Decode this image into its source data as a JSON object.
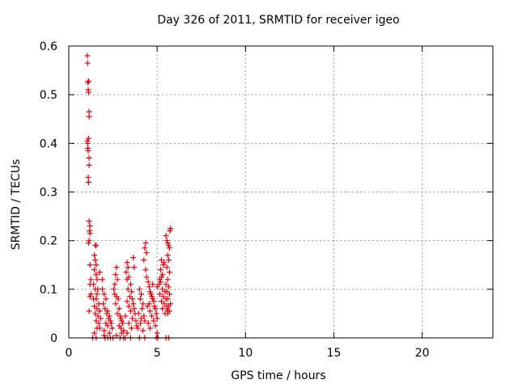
{
  "chart_data": {
    "type": "scatter",
    "title": "Day 326 of 2011, SRMTID for receiver igeo",
    "xlabel": "GPS time / hours",
    "ylabel": "SRMTID / TECUs",
    "xlim": [
      0,
      24
    ],
    "ylim": [
      0,
      0.6
    ],
    "xticks": [
      0,
      5,
      10,
      15,
      20
    ],
    "xtick_labels": [
      "0",
      "5",
      "10",
      "15",
      "20"
    ],
    "yticks": [
      0,
      0.1,
      0.2,
      0.3,
      0.4,
      0.5,
      0.6
    ],
    "ytick_labels": [
      "0",
      "0.1",
      "0.2",
      "0.3",
      "0.4",
      "0.5",
      "0.6"
    ],
    "grid": true,
    "marker": "+",
    "color": "#e8000b",
    "series": [
      {
        "name": "SRMTID",
        "points": [
          [
            1.05,
            0.58
          ],
          [
            1.07,
            0.565
          ],
          [
            1.08,
            0.525
          ],
          [
            1.12,
            0.528
          ],
          [
            1.1,
            0.51
          ],
          [
            1.12,
            0.505
          ],
          [
            1.15,
            0.465
          ],
          [
            1.15,
            0.455
          ],
          [
            1.12,
            0.41
          ],
          [
            1.05,
            0.405
          ],
          [
            1.07,
            0.4
          ],
          [
            1.08,
            0.39
          ],
          [
            1.1,
            0.385
          ],
          [
            1.15,
            0.37
          ],
          [
            1.15,
            0.355
          ],
          [
            1.1,
            0.33
          ],
          [
            1.12,
            0.32
          ],
          [
            1.15,
            0.24
          ],
          [
            1.2,
            0.23
          ],
          [
            1.18,
            0.22
          ],
          [
            1.2,
            0.215
          ],
          [
            1.15,
            0.2
          ],
          [
            1.12,
            0.195
          ],
          [
            1.2,
            0.15
          ],
          [
            1.25,
            0.12
          ],
          [
            1.2,
            0.11
          ],
          [
            1.25,
            0.09
          ],
          [
            1.2,
            0.085
          ],
          [
            1.15,
            0.055
          ],
          [
            1.5,
            0.19
          ],
          [
            1.55,
            0.19
          ],
          [
            1.45,
            0.17
          ],
          [
            1.5,
            0.16
          ],
          [
            1.55,
            0.15
          ],
          [
            1.45,
            0.14
          ],
          [
            1.55,
            0.13
          ],
          [
            1.6,
            0.12
          ],
          [
            1.4,
            0.11
          ],
          [
            1.5,
            0.1
          ],
          [
            1.65,
            0.1
          ],
          [
            1.6,
            0.09
          ],
          [
            1.4,
            0.08
          ],
          [
            1.55,
            0.08
          ],
          [
            1.7,
            0.07
          ],
          [
            1.45,
            0.065
          ],
          [
            1.6,
            0.06
          ],
          [
            1.75,
            0.055
          ],
          [
            1.5,
            0.05
          ],
          [
            1.65,
            0.045
          ],
          [
            1.8,
            0.04
          ],
          [
            1.55,
            0.035
          ],
          [
            1.7,
            0.03
          ],
          [
            1.6,
            0.02
          ],
          [
            1.75,
            0.02
          ],
          [
            1.45,
            0.01
          ],
          [
            1.35,
            0.0
          ],
          [
            1.55,
            0.0
          ],
          [
            1.75,
            0.135
          ],
          [
            1.9,
            0.1
          ],
          [
            2.0,
            0.09
          ],
          [
            2.1,
            0.08
          ],
          [
            1.95,
            0.07
          ],
          [
            2.05,
            0.06
          ],
          [
            2.2,
            0.055
          ],
          [
            2.15,
            0.05
          ],
          [
            2.3,
            0.045
          ],
          [
            2.25,
            0.04
          ],
          [
            2.35,
            0.035
          ],
          [
            2.1,
            0.03
          ],
          [
            2.4,
            0.03
          ],
          [
            2.2,
            0.025
          ],
          [
            2.45,
            0.02
          ],
          [
            2.0,
            0.015
          ],
          [
            2.3,
            0.01
          ],
          [
            2.05,
            0.0
          ],
          [
            2.2,
            0.0
          ],
          [
            2.35,
            0.0
          ],
          [
            1.9,
            0.12
          ],
          [
            2.0,
            0.005
          ],
          [
            2.55,
            0.1
          ],
          [
            2.6,
            0.11
          ],
          [
            2.7,
            0.145
          ],
          [
            2.65,
            0.13
          ],
          [
            2.75,
            0.12
          ],
          [
            2.6,
            0.09
          ],
          [
            2.7,
            0.085
          ],
          [
            2.8,
            0.08
          ],
          [
            2.65,
            0.07
          ],
          [
            2.85,
            0.06
          ],
          [
            2.75,
            0.05
          ],
          [
            2.9,
            0.045
          ],
          [
            2.95,
            0.04
          ],
          [
            3.0,
            0.035
          ],
          [
            3.05,
            0.03
          ],
          [
            2.85,
            0.025
          ],
          [
            2.95,
            0.02
          ],
          [
            3.1,
            0.015
          ],
          [
            3.0,
            0.01
          ],
          [
            2.7,
            0.005
          ],
          [
            2.9,
            0.0
          ],
          [
            3.1,
            0.0
          ],
          [
            2.5,
            0.0
          ],
          [
            3.3,
            0.155
          ],
          [
            3.35,
            0.145
          ],
          [
            3.25,
            0.135
          ],
          [
            3.4,
            0.125
          ],
          [
            3.3,
            0.12
          ],
          [
            3.5,
            0.11
          ],
          [
            3.35,
            0.1
          ],
          [
            3.55,
            0.095
          ],
          [
            3.45,
            0.085
          ],
          [
            3.6,
            0.08
          ],
          [
            3.3,
            0.075
          ],
          [
            3.65,
            0.07
          ],
          [
            3.4,
            0.065
          ],
          [
            3.7,
            0.06
          ],
          [
            3.5,
            0.055
          ],
          [
            3.75,
            0.05
          ],
          [
            3.2,
            0.045
          ],
          [
            3.6,
            0.04
          ],
          [
            3.8,
            0.035
          ],
          [
            3.4,
            0.03
          ],
          [
            3.85,
            0.025
          ],
          [
            3.55,
            0.02
          ],
          [
            3.3,
            0.01
          ],
          [
            3.2,
            0.0
          ],
          [
            3.5,
            0.0
          ],
          [
            3.65,
            0.165
          ],
          [
            3.7,
            0.145
          ],
          [
            4.0,
            0.1
          ],
          [
            4.1,
            0.09
          ],
          [
            4.05,
            0.08
          ],
          [
            4.2,
            0.07
          ],
          [
            4.15,
            0.06
          ],
          [
            3.95,
            0.05
          ],
          [
            4.25,
            0.045
          ],
          [
            4.1,
            0.04
          ],
          [
            4.3,
            0.035
          ],
          [
            4.05,
            0.03
          ],
          [
            3.9,
            0.02
          ],
          [
            4.2,
            0.015
          ],
          [
            4.0,
            0.0
          ],
          [
            4.3,
            0.0
          ],
          [
            4.35,
            0.195
          ],
          [
            4.3,
            0.185
          ],
          [
            4.4,
            0.175
          ],
          [
            4.25,
            0.16
          ],
          [
            4.35,
            0.14
          ],
          [
            4.4,
            0.125
          ],
          [
            4.5,
            0.115
          ],
          [
            4.55,
            0.105
          ],
          [
            4.6,
            0.095
          ],
          [
            4.65,
            0.09
          ],
          [
            4.7,
            0.085
          ],
          [
            4.75,
            0.08
          ],
          [
            4.8,
            0.075
          ],
          [
            4.55,
            0.07
          ],
          [
            4.85,
            0.065
          ],
          [
            4.9,
            0.06
          ],
          [
            4.6,
            0.055
          ],
          [
            4.95,
            0.05
          ],
          [
            4.7,
            0.045
          ],
          [
            5.0,
            0.04
          ],
          [
            4.8,
            0.035
          ],
          [
            4.5,
            0.03
          ],
          [
            4.9,
            0.025
          ],
          [
            4.6,
            0.02
          ],
          [
            5.0,
            0.01
          ],
          [
            4.95,
            0.0
          ],
          [
            5.05,
            0.0
          ],
          [
            4.45,
            0.065
          ],
          [
            4.75,
            0.11
          ],
          [
            5.0,
            0.105
          ],
          [
            5.1,
            0.11
          ],
          [
            5.2,
            0.115
          ],
          [
            5.15,
            0.12
          ],
          [
            5.25,
            0.125
          ],
          [
            5.3,
            0.13
          ],
          [
            5.2,
            0.14
          ],
          [
            5.35,
            0.15
          ],
          [
            5.25,
            0.16
          ],
          [
            5.4,
            0.155
          ],
          [
            5.3,
            0.1
          ],
          [
            5.45,
            0.095
          ],
          [
            5.15,
            0.09
          ],
          [
            5.35,
            0.085
          ],
          [
            5.5,
            0.08
          ],
          [
            5.25,
            0.075
          ],
          [
            5.4,
            0.07
          ],
          [
            5.55,
            0.065
          ],
          [
            5.3,
            0.06
          ],
          [
            5.6,
            0.055
          ],
          [
            5.45,
            0.05
          ],
          [
            5.5,
            0.0
          ],
          [
            5.65,
            0.0
          ],
          [
            5.5,
            0.21
          ],
          [
            5.55,
            0.2
          ],
          [
            5.6,
            0.195
          ],
          [
            5.65,
            0.19
          ],
          [
            5.7,
            0.185
          ],
          [
            5.75,
            0.225
          ],
          [
            5.72,
            0.22
          ],
          [
            5.6,
            0.17
          ],
          [
            5.65,
            0.16
          ],
          [
            5.55,
            0.145
          ],
          [
            5.7,
            0.135
          ],
          [
            5.6,
            0.12
          ],
          [
            5.5,
            0.11
          ],
          [
            5.65,
            0.105
          ],
          [
            5.55,
            0.095
          ],
          [
            5.7,
            0.09
          ],
          [
            5.6,
            0.08
          ],
          [
            5.75,
            0.07
          ],
          [
            5.65,
            0.065
          ],
          [
            5.55,
            0.06
          ],
          [
            5.7,
            0.055
          ],
          [
            5.6,
            0.05
          ]
        ]
      }
    ]
  }
}
